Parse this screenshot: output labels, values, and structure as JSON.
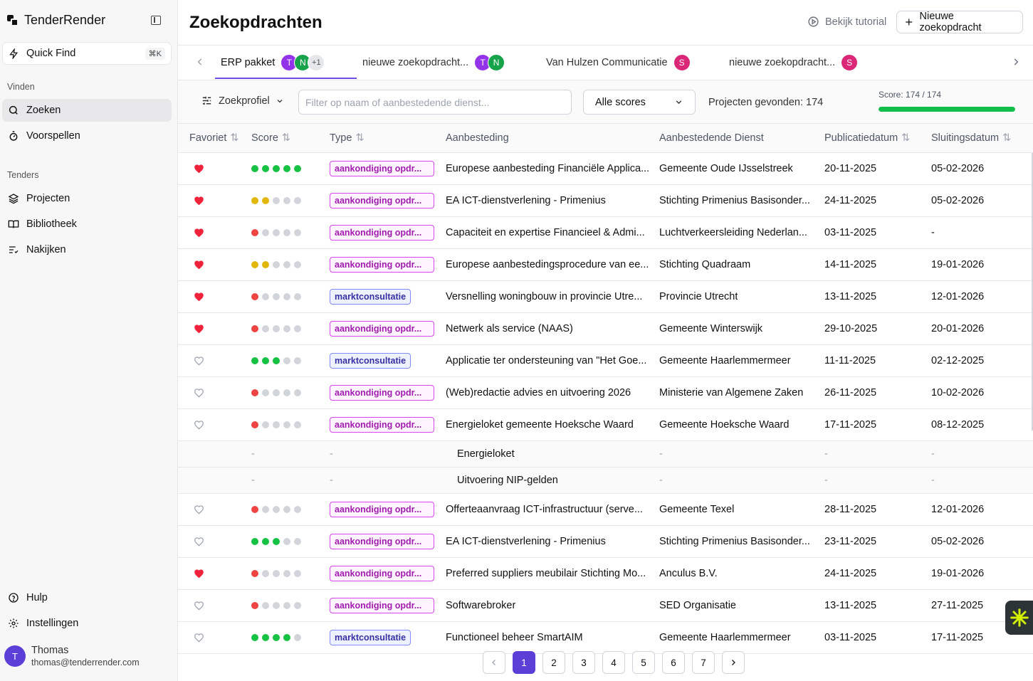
{
  "app": {
    "name": "TenderRender"
  },
  "sidebar": {
    "quick_find": {
      "label": "Quick Find",
      "shortcut": "⌘K"
    },
    "section_find": "Vinden",
    "find_items": [
      {
        "label": "Zoeken",
        "icon": "search-icon"
      },
      {
        "label": "Voorspellen",
        "icon": "timer-icon"
      }
    ],
    "section_tenders": "Tenders",
    "tender_items": [
      {
        "label": "Projecten",
        "icon": "layers-icon"
      },
      {
        "label": "Bibliotheek",
        "icon": "book-icon"
      },
      {
        "label": "Nakijken",
        "icon": "review-list-icon"
      }
    ],
    "help": "Hulp",
    "settings": "Instellingen",
    "user": {
      "initial": "T",
      "name": "Thomas",
      "email": "thomas@tenderrender.com"
    }
  },
  "header": {
    "title": "Zoekopdrachten",
    "tutorial": "Bekijk tutorial",
    "new_search": "Nieuwe zoekopdracht"
  },
  "tabs": [
    {
      "label": "ERP pakket",
      "avatars": [
        {
          "initial": "T",
          "color": "#9333ea"
        },
        {
          "initial": "N",
          "color": "#16a34a"
        }
      ],
      "more": "+1"
    },
    {
      "label": "nieuwe zoekopdracht...",
      "avatars": [
        {
          "initial": "T",
          "color": "#9333ea"
        },
        {
          "initial": "N",
          "color": "#16a34a"
        }
      ]
    },
    {
      "label": "Van Hulzen Communicatie",
      "avatars": [
        {
          "initial": "S",
          "color": "#db2777"
        }
      ]
    },
    {
      "label": "nieuwe zoekopdracht...",
      "avatars": [
        {
          "initial": "S",
          "color": "#db2777"
        }
      ]
    }
  ],
  "filters": {
    "profile": "Zoekprofiel",
    "search_placeholder": "Filter op naam of aanbestedende dienst...",
    "scores": "Alle scores",
    "found": "Projecten gevonden: 174",
    "score_label": "Score: 174 / 174",
    "score_fraction": 1.0,
    "score_color": "#0fbf4a"
  },
  "table": {
    "columns": [
      "Favoriet",
      "Score",
      "Type",
      "Aanbesteding",
      "Aanbestedende Dienst",
      "Publicatiedatum",
      "Sluitingsdatum"
    ],
    "rows": [
      {
        "fav": true,
        "score": 5,
        "type": "aankondiging opdr...",
        "kind": "ao",
        "title": "Europese aanbesteding Financiële Applica...",
        "agency": "Gemeente Oude IJsselstreek",
        "pub": "20-11-2025",
        "close": "05-02-2026"
      },
      {
        "fav": true,
        "score": 2,
        "type": "aankondiging opdr...",
        "kind": "ao",
        "title": "EA ICT-dienstverlening - Primenius",
        "agency": "Stichting Primenius Basisonder...",
        "pub": "24-11-2025",
        "close": "05-02-2026"
      },
      {
        "fav": true,
        "score": 1,
        "type": "aankondiging opdr...",
        "kind": "ao",
        "title": "Capaciteit en expertise Financieel & Admi...",
        "agency": "Luchtverkeersleiding Nederlan...",
        "pub": "03-11-2025",
        "close": "-"
      },
      {
        "fav": true,
        "score": 2,
        "type": "aankondiging opdr...",
        "kind": "ao",
        "title": "Europese aanbestedingsprocedure van ee...",
        "agency": "Stichting Quadraam",
        "pub": "14-11-2025",
        "close": "19-01-2026"
      },
      {
        "fav": true,
        "score": 1,
        "type": "marktconsultatie",
        "kind": "mk",
        "title": "Versnelling woningbouw in provincie Utre...",
        "agency": "Provincie Utrecht",
        "pub": "13-11-2025",
        "close": "12-01-2026"
      },
      {
        "fav": true,
        "score": 1,
        "type": "aankondiging opdr...",
        "kind": "ao",
        "title": "Netwerk als service (NAAS)",
        "agency": "Gemeente Winterswijk",
        "pub": "29-10-2025",
        "close": "20-01-2026"
      },
      {
        "fav": false,
        "score": 3,
        "type": "marktconsultatie",
        "kind": "mk",
        "title": "Applicatie ter ondersteuning van \"Het Goe...",
        "agency": "Gemeente Haarlemmermeer",
        "pub": "11-11-2025",
        "close": "02-12-2025"
      },
      {
        "fav": false,
        "score": 1,
        "type": "aankondiging opdr...",
        "kind": "ao",
        "title": "(Web)redactie advies en uitvoering 2026",
        "agency": "Ministerie van Algemene Zaken",
        "pub": "26-11-2025",
        "close": "10-02-2026"
      },
      {
        "fav": false,
        "score": 1,
        "type": "aankondiging opdr...",
        "kind": "ao",
        "title": "Energieloket gemeente Hoeksche Waard",
        "agency": "Gemeente Hoeksche Waard",
        "pub": "17-11-2025",
        "close": "08-12-2025"
      },
      {
        "sub": true,
        "title": "Energieloket"
      },
      {
        "sub": true,
        "title": "Uitvoering NIP-gelden"
      },
      {
        "fav": false,
        "score": 1,
        "type": "aankondiging opdr...",
        "kind": "ao",
        "title": "Offerteaanvraag ICT-infrastructuur (serve...",
        "agency": "Gemeente Texel",
        "pub": "28-11-2025",
        "close": "12-01-2026"
      },
      {
        "fav": false,
        "score": 3,
        "type": "aankondiging opdr...",
        "kind": "ao",
        "title": "EA ICT-dienstverlening - Primenius",
        "agency": "Stichting Primenius Basisonder...",
        "pub": "23-11-2025",
        "close": "05-02-2026"
      },
      {
        "fav": true,
        "score": 1,
        "type": "aankondiging opdr...",
        "kind": "ao",
        "title": "Preferred suppliers meubilair Stichting Mo...",
        "agency": "Anculus B.V.",
        "pub": "24-11-2025",
        "close": "19-01-2026"
      },
      {
        "fav": false,
        "score": 1,
        "type": "aankondiging opdr...",
        "kind": "ao",
        "title": "Softwarebroker",
        "agency": "SED Organisatie",
        "pub": "13-11-2025",
        "close": "27-11-2025"
      },
      {
        "fav": false,
        "score": 4,
        "type": "marktconsultatie",
        "kind": "mk",
        "title": "Functioneel beheer SmartAIM",
        "agency": "Gemeente Haarlemmermeer",
        "pub": "03-11-2025",
        "close": "17-11-2025"
      }
    ]
  },
  "pagination": {
    "pages": [
      "1",
      "2",
      "3",
      "4",
      "5",
      "6",
      "7"
    ],
    "current": "1"
  },
  "colors": {
    "accent": "#5b3fd6",
    "heart": "#ef233c",
    "score_high": "#16c244",
    "score_mid": "#e1b70c",
    "score_low": "#ef4444"
  }
}
